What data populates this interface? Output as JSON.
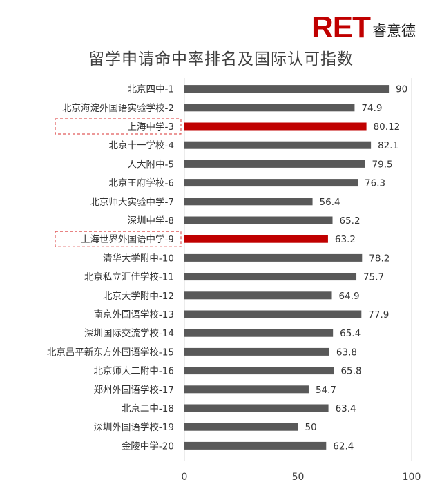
{
  "brand": {
    "logo": "RET",
    "name": "睿意德",
    "color": "#c00000"
  },
  "chart_data": {
    "type": "bar",
    "orientation": "horizontal",
    "title": "留学申请命中率排名及国际认可指数",
    "categories": [
      "北京四中-1",
      "北京海淀外国语实验学校-2",
      "上海中学-3",
      "北京十一学校-4",
      "人大附中-5",
      "北京王府学校-6",
      "北京师大实验中学-7",
      "深圳中学-8",
      "上海世界外国语中学-9",
      "清华大学附中-10",
      "北京私立汇佳学校-11",
      "北京大学附中-12",
      "南京外国语学校-13",
      "深圳国际交流学校-14",
      "北京昌平新东方外国语学校-15",
      "北京师大二附中-16",
      "郑州外国语学校-17",
      "北京二中-18",
      "深圳外国语学校-19",
      "金陵中学-20"
    ],
    "values": [
      90,
      74.9,
      80.12,
      82.1,
      79.5,
      76.3,
      56.4,
      65.2,
      63.2,
      78.2,
      75.7,
      64.9,
      77.9,
      65.4,
      63.8,
      65.8,
      54.7,
      63.4,
      50,
      62.4
    ],
    "labels": [
      "90",
      "74.9",
      "80.12",
      "82.1",
      "79.5",
      "76.3",
      "56.4",
      "65.2",
      "63.2",
      "78.2",
      "75.7",
      "64.9",
      "77.9",
      "65.4",
      "63.8",
      "65.8",
      "54.7",
      "63.4",
      "50",
      "62.4"
    ],
    "highlighted": [
      2,
      8
    ],
    "xlim": [
      0,
      100
    ],
    "xticks": [
      "0",
      "50",
      "100"
    ],
    "grid": "vertical",
    "legend": "none",
    "colors": {
      "bar": "#595959",
      "highlight": "#c00000",
      "highlight_box": "#e05a5a",
      "grid": "#d9d9d9"
    }
  }
}
